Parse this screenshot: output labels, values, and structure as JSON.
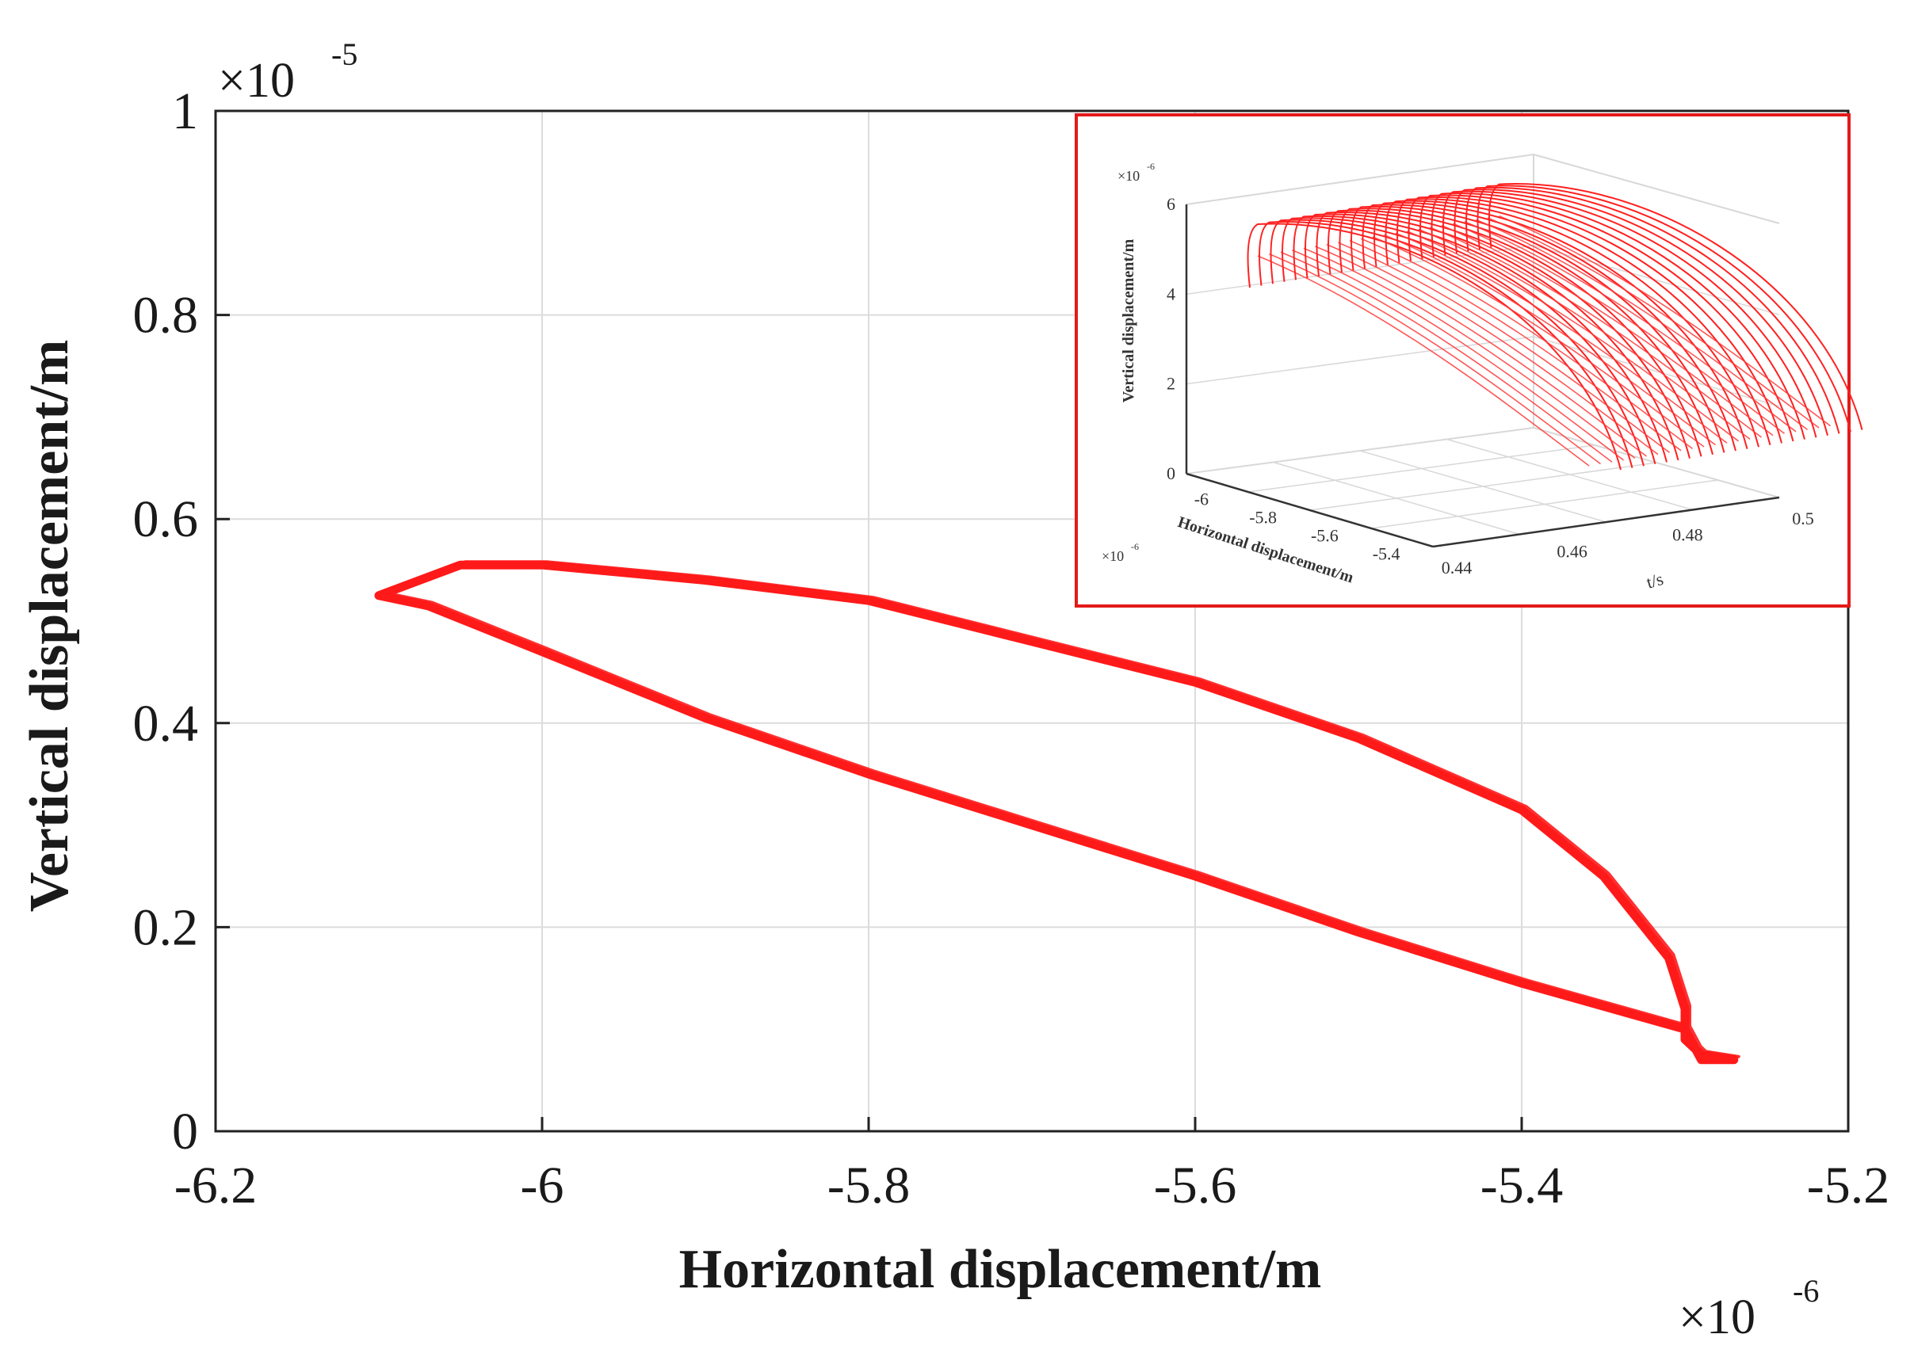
{
  "chart_data": [
    {
      "type": "line",
      "title": "",
      "xlabel": "Horizontal displacement/m",
      "ylabel": "Vertical displacement/m",
      "x_multiplier": "×10",
      "x_exponent": "-6",
      "y_multiplier": "×10",
      "y_exponent": "-5",
      "xlim": [
        -6.2,
        -5.2
      ],
      "ylim": [
        0,
        1
      ],
      "xticks": [
        -6.2,
        -6,
        -5.8,
        -5.6,
        -5.4,
        -5.2
      ],
      "xtick_labels": [
        "-6.2",
        "-6",
        "-5.8",
        "-5.6",
        "-5.4",
        "-5.2"
      ],
      "yticks": [
        0,
        0.2,
        0.4,
        0.6,
        0.8,
        1
      ],
      "ytick_labels": [
        "0",
        "0.2",
        "0.4",
        "0.6",
        "0.8",
        "1"
      ],
      "grid": true,
      "line_color": "#ff1a1a",
      "series": [
        {
          "x": [
            -6.1,
            -6.05,
            -6.0,
            -5.9,
            -5.8,
            -5.7,
            -5.6,
            -5.5,
            -5.4,
            -5.35,
            -5.31,
            -5.3,
            -5.3,
            -5.29,
            -5.27,
            -5.29,
            -5.3,
            -5.4,
            -5.5,
            -5.6,
            -5.7,
            -5.8,
            -5.9,
            -6.0,
            -6.07,
            -6.1
          ],
          "y": [
            0.525,
            0.555,
            0.555,
            0.54,
            0.52,
            0.48,
            0.44,
            0.385,
            0.315,
            0.25,
            0.17,
            0.12,
            0.09,
            0.075,
            0.07,
            0.07,
            0.1,
            0.145,
            0.195,
            0.25,
            0.3,
            0.35,
            0.405,
            0.47,
            0.515,
            0.525
          ]
        }
      ]
    },
    {
      "type": "line",
      "title": "",
      "frame_color": "#e31a1a",
      "zlabel": "Vertical displacement/m",
      "xlabel": "Horizontal displacement/m",
      "ylabel": "t/s",
      "z_multiplier": "×10",
      "z_exponent": "-6",
      "x_multiplier": "×10",
      "x_exponent": "-6",
      "zticks": [
        "0",
        "2",
        "4",
        "6"
      ],
      "xticks": [
        "-6",
        "-5.8",
        "-5.6",
        "-5.4"
      ],
      "yticks": [
        "0.44",
        "0.46",
        "0.48",
        "0.5"
      ],
      "curve_count": 22
    }
  ]
}
